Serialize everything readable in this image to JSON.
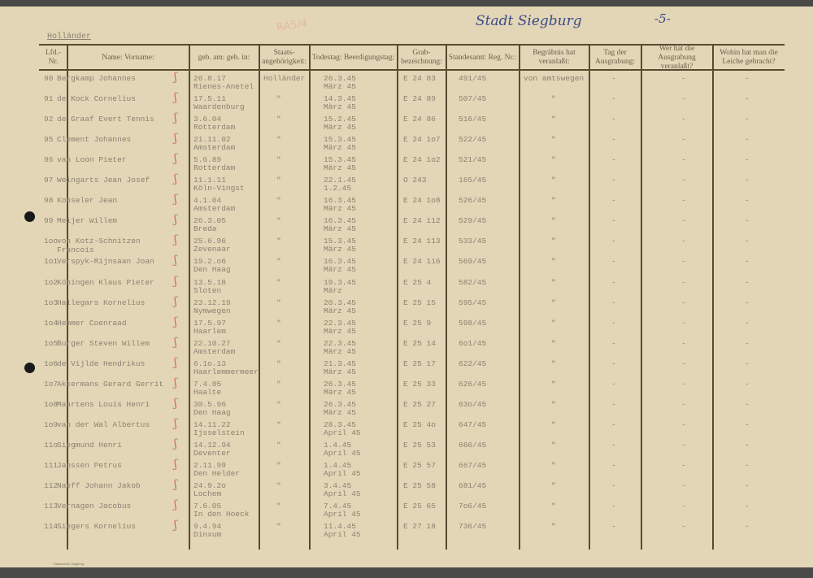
{
  "handwritten_title": "Stadt Siegburg",
  "page_number": "-5-",
  "stamp": "RA5/4",
  "section_label": "Holländer",
  "footer": "Stadtarchiv Siegburg",
  "columns": [
    "Lfd.-Nr.",
    "Name: Vorname:",
    "geb. am: geb. in:",
    "Staats-angehörigkeit:",
    "Todestag: Beerdigungstag:",
    "Grab-bezeichnung:",
    "Standesamt: Reg. Nr.:",
    "Begräbnis hat veranlaßt:",
    "Tag der Ausgrabung:",
    "Wer hat die Ausgrabung veranlaßt?",
    "Wohin hat man die Leiche gebracht?"
  ],
  "rows": [
    {
      "nr": "90",
      "name": "Bergkamp Johannes",
      "born_date": "26.8.17",
      "born_place": "Rienes-Anetel",
      "nat": "Holländer",
      "death": "26.3.45",
      "burial": "März 45",
      "grab": "E 24  83",
      "reg": "491/45",
      "begr": "von amtswegen",
      "tag": "-",
      "wer": "-",
      "wohin": "-"
    },
    {
      "nr": "91",
      "name": "de Kock Cornelius",
      "born_date": "17.5.11",
      "born_place": "Waardenburg",
      "nat": "\"",
      "death": "14.3.45",
      "burial": "März 45",
      "grab": "E 24  89",
      "reg": "507/45",
      "begr": "\"",
      "tag": "-",
      "wer": "-",
      "wohin": "-"
    },
    {
      "nr": "92",
      "name": "de Graaf Evert Tennis",
      "born_date": "3.6.04",
      "born_place": "Rotterdam",
      "nat": "\"",
      "death": "15.2.45",
      "burial": "März 45",
      "grab": "E 24  86",
      "reg": "516/45",
      "begr": "\"",
      "tag": "-",
      "wer": "-",
      "wohin": "-"
    },
    {
      "nr": "95",
      "name": "Clement Johannes",
      "born_date": "21.11.02",
      "born_place": "Amsterdam",
      "nat": "\"",
      "death": "15.3.45",
      "burial": "März 45",
      "grab": "E 24  1o7",
      "reg": "522/45",
      "begr": "\"",
      "tag": "-",
      "wer": "-",
      "wohin": "-"
    },
    {
      "nr": "96",
      "name": "van Loon Pieter",
      "born_date": "5.6.89",
      "born_place": "Rotterdam",
      "nat": "\"",
      "death": "15.3.45",
      "burial": "März 45",
      "grab": "E 24  1o2",
      "reg": "521/45",
      "begr": "\"",
      "tag": "-",
      "wer": "-",
      "wohin": "-"
    },
    {
      "nr": "97",
      "name": "Weingarts Jean Josef",
      "born_date": "11.1.11",
      "born_place": "Köln-Vingst",
      "nat": "\"",
      "death": "22.1.45",
      "burial": "1.2.45",
      "grab": "O    243",
      "reg": "165/45",
      "begr": "\"",
      "tag": "-",
      "wer": "-",
      "wohin": "-"
    },
    {
      "nr": "98",
      "name": "Konseler Jean",
      "born_date": "4.1.04",
      "born_place": "Amsterdam",
      "nat": "\"",
      "death": "16.3.45",
      "burial": "März 45",
      "grab": "E 24  1o8",
      "reg": "526/45",
      "begr": "\"",
      "tag": "-",
      "wer": "-",
      "wohin": "-"
    },
    {
      "nr": "99",
      "name": "Meijer Willem",
      "born_date": "26.3.05",
      "born_place": "Breda",
      "nat": "\"",
      "death": "16.3.45",
      "burial": "März 45",
      "grab": "E 24  112",
      "reg": "529/45",
      "begr": "\"",
      "tag": "-",
      "wer": "-",
      "wohin": "-"
    },
    {
      "nr": "1oo",
      "name": "von Kotz-Schnitzen Francois",
      "born_date": "25.6.96",
      "born_place": "Zevenaar",
      "nat": "\"",
      "death": "15.3.45",
      "burial": "März 45",
      "grab": "E 24  113",
      "reg": "533/45",
      "begr": "\"",
      "tag": "-",
      "wer": "-",
      "wohin": "-"
    },
    {
      "nr": "1o1",
      "name": "Verspyk-Rijnsaan Joan",
      "born_date": "19.2.o6",
      "born_place": "Den Haag",
      "nat": "\"",
      "death": "16.3.45",
      "burial": "März 45",
      "grab": "E 24  116",
      "reg": "569/45",
      "begr": "\"",
      "tag": "-",
      "wer": "-",
      "wohin": "-"
    },
    {
      "nr": "1o2",
      "name": "Köningen Klaus Pieter",
      "born_date": "13.5.18",
      "born_place": "Sloten",
      "nat": "\"",
      "death": "19.3.45",
      "burial": "März",
      "grab": "E 25    4",
      "reg": "582/45",
      "begr": "\"",
      "tag": "-",
      "wer": "-",
      "wohin": "-"
    },
    {
      "nr": "1o3",
      "name": "Hallegars Kornelius",
      "born_date": "23.12.19",
      "born_place": "Nymwegen",
      "nat": "\"",
      "death": "20.3.45",
      "burial": "März 45",
      "grab": "E 25  15",
      "reg": "595/45",
      "begr": "\"",
      "tag": "-",
      "wer": "-",
      "wohin": "-"
    },
    {
      "nr": "1o4",
      "name": "Hemmer Coenraad",
      "born_date": "17.5.97",
      "born_place": "Haarlem",
      "nat": "\"",
      "death": "22.3.45",
      "burial": "März 45",
      "grab": "E 25   9",
      "reg": "598/45",
      "begr": "\"",
      "tag": "-",
      "wer": "-",
      "wohin": "-"
    },
    {
      "nr": "1o5",
      "name": "Burger Steven Willem",
      "born_date": "22.10.27",
      "born_place": "Amsterdam",
      "nat": "\"",
      "death": "22.3.45",
      "burial": "März 45",
      "grab": "E 25  14",
      "reg": "6o1/45",
      "begr": "\"",
      "tag": "-",
      "wer": "-",
      "wohin": "-"
    },
    {
      "nr": "1o6",
      "name": "de Vijlde Hendrikus",
      "born_date": "6.1o.13",
      "born_place": "Haarlemmermeer",
      "nat": "\"",
      "death": "21.3.45",
      "burial": "März 45",
      "grab": "E 25  17",
      "reg": "622/45",
      "begr": "\"",
      "tag": "-",
      "wer": "-",
      "wohin": "-"
    },
    {
      "nr": "1o7",
      "name": "Akkermans Gerard Gerrit",
      "born_date": "7.4.05",
      "born_place": "Haalte",
      "nat": "\"",
      "death": "26.3.45",
      "burial": "März 45",
      "grab": "E 25  33",
      "reg": "626/45",
      "begr": "\"",
      "tag": "-",
      "wer": "-",
      "wohin": "-"
    },
    {
      "nr": "1o8",
      "name": "Maartens Louis Henri",
      "born_date": "30.5.96",
      "born_place": "Den Haag",
      "nat": "\"",
      "death": "26.3.45",
      "burial": "März 45",
      "grab": "E 25  27",
      "reg": "63o/45",
      "begr": "\"",
      "tag": "-",
      "wer": "-",
      "wohin": "-"
    },
    {
      "nr": "1o9",
      "name": "van der Wal Albertus",
      "born_date": "14.11.22",
      "born_place": "Ijsselstein",
      "nat": "\"",
      "death": "28.3.45",
      "burial": "April 45",
      "grab": "E 25  4o",
      "reg": "647/45",
      "begr": "\"",
      "tag": "-",
      "wer": "-",
      "wohin": "-"
    },
    {
      "nr": "11o",
      "name": "Siegmund Henri",
      "born_date": "14.12.94",
      "born_place": "Deventer",
      "nat": "\"",
      "death": "1.4.45",
      "burial": "April 45",
      "grab": "E 25  53",
      "reg": "666/45",
      "begr": "\"",
      "tag": "-",
      "wer": "-",
      "wohin": "-"
    },
    {
      "nr": "111",
      "name": "Janssen Petrus",
      "born_date": "2.11.99",
      "born_place": "Den Helder",
      "nat": "\"",
      "death": "1.4.45",
      "burial": "April 45",
      "grab": "E 25  57",
      "reg": "667/45",
      "begr": "\"",
      "tag": "-",
      "wer": "-",
      "wohin": "-"
    },
    {
      "nr": "112",
      "name": "Naeff Johann Jakob",
      "born_date": "24.9.2o",
      "born_place": "Lochem",
      "nat": "\"",
      "death": "3.4.45",
      "burial": "April 45",
      "grab": "E 25  58",
      "reg": "681/45",
      "begr": "\"",
      "tag": "-",
      "wer": "-",
      "wohin": "-"
    },
    {
      "nr": "113",
      "name": "Vernagen Jacobus",
      "born_date": "7.6.05",
      "born_place": "In den Hoeck",
      "nat": "\"",
      "death": "7.4.45",
      "burial": "April 45",
      "grab": "E 25  65",
      "reg": "7o6/45",
      "begr": "\"",
      "tag": "-",
      "wer": "-",
      "wohin": "-"
    },
    {
      "nr": "114",
      "name": "Siegers Kornelius",
      "born_date": "9.4.94",
      "born_place": "Dinxum",
      "nat": "\"",
      "death": "11.4.45",
      "burial": "April 45",
      "grab": "E 27  18",
      "reg": "736/45",
      "begr": "\"",
      "tag": "-",
      "wer": "-",
      "wohin": "-"
    }
  ]
}
